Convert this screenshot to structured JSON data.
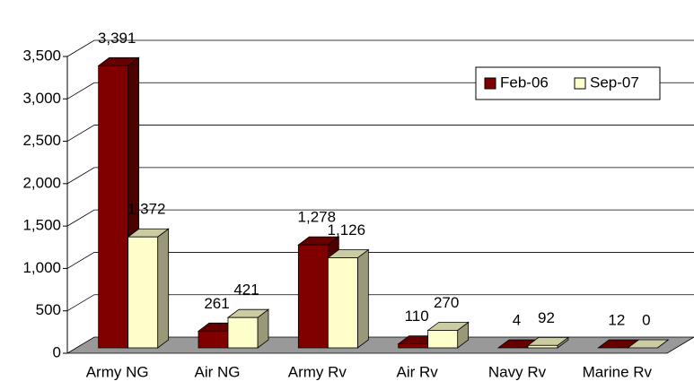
{
  "chart_data": {
    "type": "bar3d",
    "categories": [
      "Army NG",
      "Air NG",
      "Army Rv",
      "Air Rv",
      "Navy Rv",
      "Marine Rv"
    ],
    "series": [
      {
        "name": "Feb-06",
        "color": "#800000",
        "values": [
          3391,
          261,
          1278,
          110,
          4,
          12
        ],
        "value_labels": [
          "3,391",
          "261",
          "1,278",
          "110",
          "4",
          "12"
        ]
      },
      {
        "name": "Sep-07",
        "color": "#ffffcc",
        "values": [
          1372,
          421,
          1126,
          270,
          92,
          0
        ],
        "value_labels": [
          "1,372",
          "421",
          "1,126",
          "270",
          "92",
          "0"
        ]
      }
    ],
    "ylim": [
      0,
      3500
    ],
    "yticks": [
      0,
      500,
      {
        "value": 1000,
        "label": "1,000"
      },
      {
        "value": 1500,
        "label": "1,500"
      },
      {
        "value": 2000,
        "label": "2,000"
      },
      {
        "value": 2500,
        "label": "2,500"
      },
      {
        "value": 3000,
        "label": "3,000"
      },
      {
        "value": 3500,
        "label": "3,500"
      }
    ],
    "grid": true,
    "legend": "upper right"
  }
}
